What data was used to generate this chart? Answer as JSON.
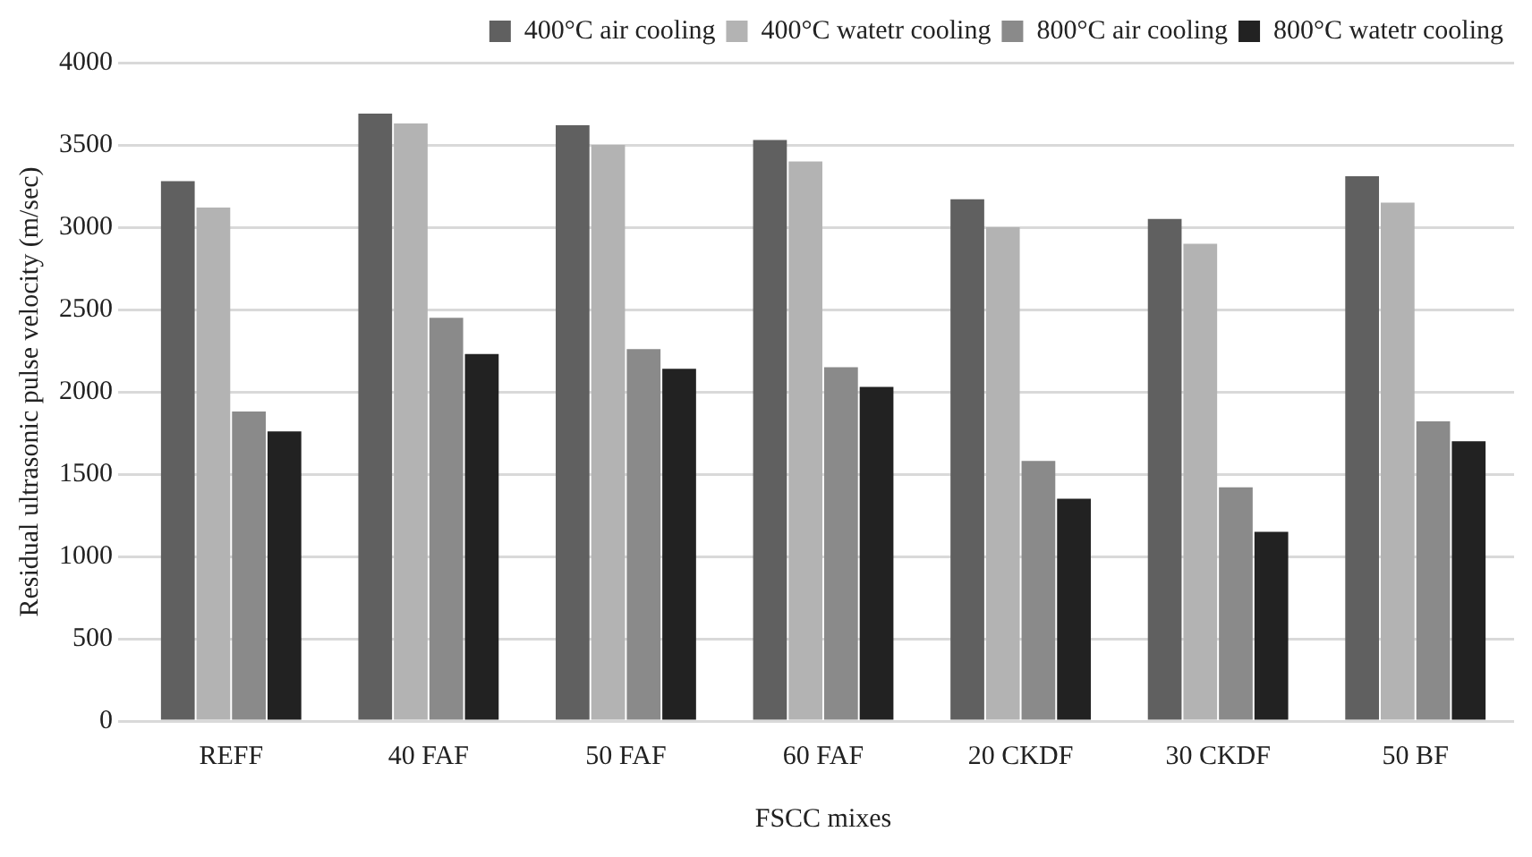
{
  "chart_data": {
    "type": "bar",
    "xlabel": "FSCC mixes",
    "ylabel": "Residual ultrasonic pulse velocity (m/sec)",
    "categories": [
      "REFF",
      "40 FAF",
      "50 FAF",
      "60 FAF",
      "20 CKDF",
      "30 CKDF",
      "50 BF"
    ],
    "series": [
      {
        "name": "400°C air cooling",
        "color": "#606060",
        "values": [
          3280,
          3690,
          3620,
          3530,
          3170,
          3050,
          3310
        ]
      },
      {
        "name": "400°C watetr cooling",
        "color": "#b3b3b3",
        "values": [
          3120,
          3630,
          3500,
          3400,
          3000,
          2900,
          3150
        ]
      },
      {
        "name": "800°C air cooling",
        "color": "#8a8a8a",
        "values": [
          1880,
          2450,
          2260,
          2150,
          1580,
          1420,
          1820
        ]
      },
      {
        "name": "800°C watetr cooling",
        "color": "#222222",
        "values": [
          1760,
          2230,
          2140,
          2030,
          1350,
          1150,
          1700
        ]
      }
    ],
    "ylim": [
      0,
      4000
    ],
    "yticks": [
      0,
      500,
      1000,
      1500,
      2000,
      2500,
      3000,
      3500,
      4000
    ],
    "grid": "y",
    "legend": "top right"
  }
}
